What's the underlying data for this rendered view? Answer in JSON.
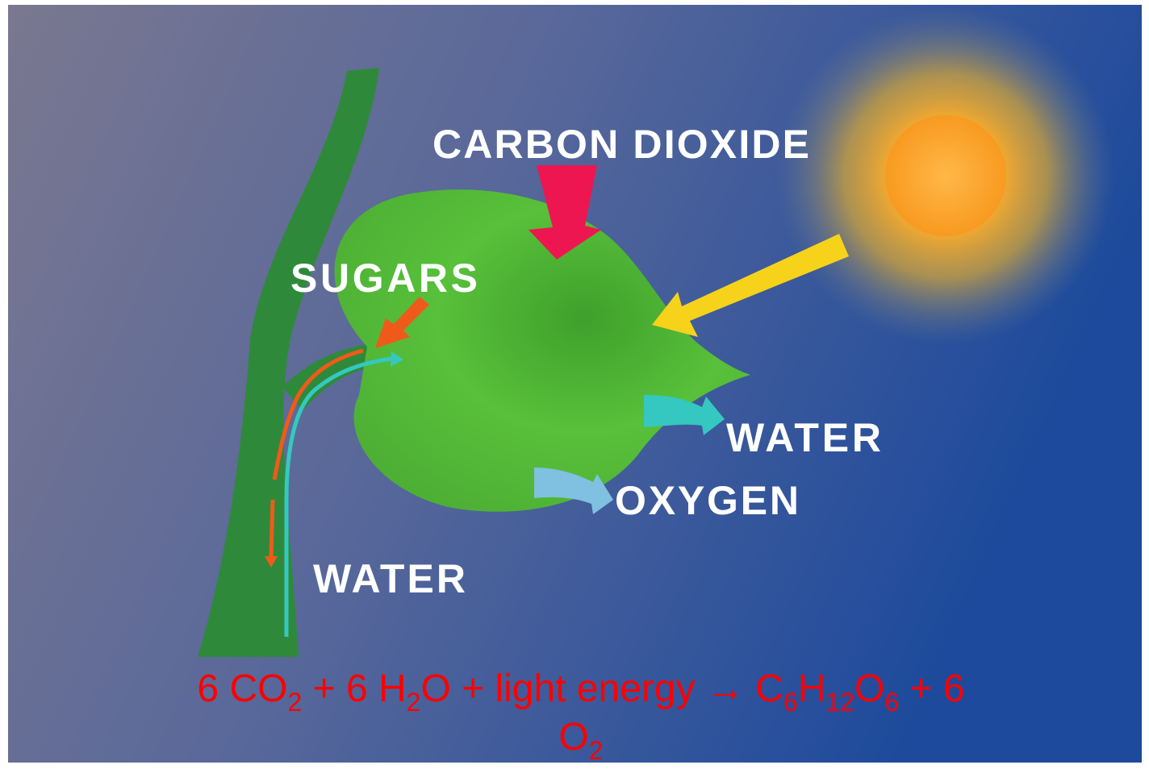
{
  "labels": {
    "carbon_dioxide": "CARBON DIOXIDE",
    "sugars": "SUGARS",
    "water_out": "WATER",
    "oxygen": "OXYGEN",
    "water_in": "WATER"
  },
  "equation": {
    "lines": [
      [
        {
          "text": "6 CO"
        },
        {
          "sub": "2"
        },
        {
          "text": " + 6 H"
        },
        {
          "sub": "2"
        },
        {
          "text": "O + light energy → C"
        },
        {
          "sub": "6"
        },
        {
          "text": "H"
        },
        {
          "sub": "12"
        },
        {
          "text": "O"
        },
        {
          "sub": "6"
        },
        {
          "text": " + 6"
        }
      ],
      [
        {
          "text": "O"
        },
        {
          "sub": "2"
        }
      ]
    ]
  }
}
